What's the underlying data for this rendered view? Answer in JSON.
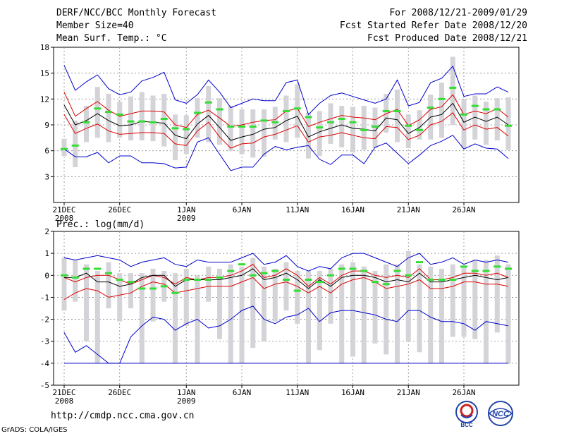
{
  "header": {
    "title": "DERF/NCC/BCC Monthly Forecast",
    "member_size": "Member Size=40",
    "variable": "Mean Surf. Temp.: °C",
    "forecast_range": "For 2008/12/21-2009/01/29",
    "start_date": "Fcst Started Refer Date 2008/12/20",
    "produced_date": "Fcst Produced Date 2008/12/21"
  },
  "footer": {
    "url": "http://cmdp.ncc.cma.gov.cn",
    "credit": "GrADS: COLA/IGES",
    "logo_left": "BCC",
    "logo_right": "NCC"
  },
  "colors": {
    "max": "#0000cc",
    "min": "#0000cc",
    "upper": "#dd0000",
    "lower": "#dd0000",
    "mean": "#000000",
    "box": "#d4d4d8",
    "marker": "#33dd33",
    "grid": "#888888"
  },
  "chart_data": [
    {
      "type": "line",
      "title": "Mean Surf. Temp.: °C",
      "ylabel": "°C",
      "ylim": [
        0,
        18
      ],
      "yticks": [
        3,
        6,
        9,
        12,
        15,
        18
      ],
      "xticks": [
        {
          "day": 0,
          "label": "21DEC",
          "sub": "2008"
        },
        {
          "day": 5,
          "label": "26DEC",
          "sub": ""
        },
        {
          "day": 11,
          "label": "1JAN",
          "sub": "2009"
        },
        {
          "day": 16,
          "label": "6JAN",
          "sub": ""
        },
        {
          "day": 21,
          "label": "11JAN",
          "sub": ""
        },
        {
          "day": 26,
          "label": "16JAN",
          "sub": ""
        },
        {
          "day": 31,
          "label": "21JAN",
          "sub": ""
        },
        {
          "day": 36,
          "label": "26JAN",
          "sub": ""
        }
      ],
      "days": 40,
      "series": [
        {
          "name": "max",
          "values": [
            15.9,
            13.0,
            14.0,
            14.8,
            13.2,
            12.5,
            12.8,
            14.1,
            14.5,
            15.1,
            11.9,
            11.5,
            12.5,
            14.2,
            12.8,
            11.0,
            11.5,
            12.0,
            11.8,
            11.8,
            13.9,
            14.2,
            10.2,
            11.5,
            12.4,
            12.7,
            12.3,
            11.9,
            11.5,
            12.0,
            14.2,
            11.2,
            11.6,
            13.9,
            14.4,
            15.8,
            12.3,
            12.6,
            12.6,
            13.4,
            12.8
          ]
        },
        {
          "name": "upper",
          "values": [
            12.8,
            10.0,
            10.9,
            11.7,
            10.7,
            10.0,
            10.3,
            10.6,
            10.6,
            10.5,
            9.0,
            8.7,
            10.2,
            10.7,
            9.8,
            8.8,
            9.0,
            9.3,
            9.5,
            9.6,
            10.6,
            10.9,
            8.8,
            9.3,
            9.7,
            10.1,
            9.9,
            9.8,
            9.6,
            10.3,
            10.8,
            8.9,
            9.6,
            10.8,
            11.1,
            12.5,
            10.2,
            10.6,
            10.3,
            10.9,
            9.9
          ]
        },
        {
          "name": "mean",
          "values": [
            11.3,
            9.0,
            9.5,
            10.3,
            9.5,
            8.9,
            9.0,
            9.4,
            9.3,
            9.2,
            7.8,
            7.4,
            9.1,
            10.1,
            8.7,
            7.2,
            7.6,
            7.9,
            8.5,
            8.7,
            9.5,
            10.0,
            7.6,
            8.2,
            8.6,
            9.0,
            8.6,
            8.5,
            8.3,
            9.8,
            9.6,
            8.0,
            8.7,
            9.9,
            10.2,
            11.5,
            9.3,
            9.9,
            9.4,
            9.9,
            9.0
          ]
        },
        {
          "name": "lower",
          "values": [
            10.2,
            8.0,
            8.6,
            9.1,
            8.3,
            7.9,
            8.0,
            8.1,
            8.1,
            8.0,
            6.8,
            6.6,
            8.3,
            9.3,
            7.6,
            6.3,
            6.8,
            6.9,
            7.6,
            7.9,
            8.4,
            8.9,
            7.0,
            7.6,
            7.8,
            8.1,
            7.8,
            7.5,
            7.4,
            8.8,
            8.7,
            7.3,
            7.8,
            9.0,
            9.4,
            10.4,
            8.4,
            9.0,
            8.5,
            8.7,
            7.7
          ]
        },
        {
          "name": "min",
          "values": [
            6.2,
            5.3,
            5.3,
            5.8,
            4.6,
            5.4,
            5.4,
            4.6,
            4.6,
            4.5,
            4.0,
            4.1,
            7.0,
            7.5,
            5.6,
            3.7,
            4.1,
            4.1,
            5.6,
            6.5,
            6.1,
            6.4,
            6.6,
            5.0,
            4.4,
            5.5,
            5.5,
            4.5,
            6.4,
            6.9,
            5.7,
            4.5,
            5.5,
            6.6,
            7.1,
            7.8,
            6.2,
            6.8,
            6.3,
            6.2,
            5.1
          ]
        }
      ],
      "box_low": [
        5.4,
        4.1,
        7.0,
        7.5,
        7.0,
        7.5,
        7.2,
        7.2,
        7.1,
        6.5,
        4.9,
        5.6,
        7.5,
        7.0,
        6.7,
        6.0,
        5.6,
        5.2,
        5.3,
        7.3,
        7.0,
        7.5,
        5.1,
        5.4,
        6.8,
        6.4,
        5.8,
        6.1,
        6.3,
        8.1,
        7.0,
        6.3,
        7.3,
        7.3,
        7.5,
        9.0,
        6.3,
        7.3,
        6.7,
        7.2,
        6.1
      ],
      "box_high": [
        7.4,
        9.5,
        11.2,
        13.4,
        12.6,
        11.7,
        12.3,
        12.8,
        12.4,
        12.6,
        10.2,
        10.1,
        12.1,
        13.5,
        12.1,
        11.2,
        10.8,
        10.8,
        10.8,
        11.1,
        12.4,
        13.7,
        10.4,
        10.6,
        11.5,
        11.2,
        11.1,
        11.2,
        11.0,
        12.6,
        13.1,
        10.2,
        10.7,
        12.5,
        13.9,
        16.9,
        12.0,
        12.4,
        11.7,
        12.1,
        12.2
      ],
      "markers": [
        6.2,
        6.6,
        9.3,
        10.9,
        10.5,
        10.2,
        9.4,
        9.4,
        9.3,
        9.7,
        8.6,
        8.5,
        10.4,
        11.6,
        10.8,
        8.8,
        8.8,
        8.8,
        9.5,
        9.3,
        10.6,
        10.9,
        9.9,
        8.7,
        9.3,
        9.7,
        9.3,
        8.4,
        8.8,
        10.6,
        10.6,
        8.9,
        8.4,
        11.0,
        12.0,
        13.3,
        10.2,
        11.2,
        10.8,
        10.8,
        8.9
      ]
    },
    {
      "type": "line",
      "title": "Prec.: log(mm/d)",
      "ylabel": "log(mm/d)",
      "ylim": [
        -5,
        2
      ],
      "yticks": [
        -5,
        -4,
        -3,
        -2,
        -1,
        0,
        1,
        2
      ],
      "xticks": [
        {
          "day": 0,
          "label": "21DEC",
          "sub": "2008"
        },
        {
          "day": 5,
          "label": "26DEC",
          "sub": ""
        },
        {
          "day": 11,
          "label": "1JAN",
          "sub": "2009"
        },
        {
          "day": 16,
          "label": "6JAN",
          "sub": ""
        },
        {
          "day": 21,
          "label": "11JAN",
          "sub": ""
        },
        {
          "day": 26,
          "label": "16JAN",
          "sub": ""
        },
        {
          "day": 31,
          "label": "21JAN",
          "sub": ""
        },
        {
          "day": 36,
          "label": "26JAN",
          "sub": ""
        }
      ],
      "days": 40,
      "series": [
        {
          "name": "max",
          "values": [
            0.8,
            0.7,
            0.8,
            0.9,
            0.8,
            0.7,
            0.4,
            0.6,
            0.7,
            0.8,
            0.5,
            0.4,
            0.7,
            0.6,
            0.6,
            0.6,
            0.8,
            1.0,
            0.5,
            0.6,
            0.9,
            0.4,
            0.2,
            0.4,
            0.3,
            0.8,
            1.0,
            1.0,
            0.8,
            0.6,
            0.4,
            0.8,
            1.0,
            0.5,
            0.6,
            0.8,
            0.5,
            0.7,
            0.6,
            0.7,
            0.6
          ]
        },
        {
          "name": "upper",
          "values": [
            -0.1,
            -0.3,
            -0.1,
            0.0,
            0.0,
            -0.2,
            -0.4,
            -0.2,
            0.0,
            -0.1,
            -0.4,
            -0.1,
            -0.2,
            -0.1,
            -0.1,
            0.0,
            0.2,
            0.5,
            -0.1,
            0.0,
            0.3,
            0.0,
            -0.5,
            -0.1,
            -0.4,
            0.0,
            0.2,
            0.2,
            0.0,
            -0.1,
            0.0,
            -0.1,
            0.3,
            -0.2,
            -0.2,
            -0.1,
            0.1,
            0.1,
            0.0,
            0.1,
            -0.1
          ]
        },
        {
          "name": "mean",
          "values": [
            -0.1,
            -0.1,
            0.1,
            -0.3,
            -0.3,
            -0.5,
            -0.4,
            -0.1,
            0.0,
            0.0,
            -0.5,
            -0.2,
            -0.2,
            -0.2,
            -0.2,
            -0.1,
            0.0,
            0.3,
            -0.2,
            -0.1,
            0.1,
            -0.2,
            -0.6,
            -0.2,
            -0.5,
            -0.1,
            0.0,
            0.0,
            -0.1,
            -0.3,
            -0.2,
            -0.3,
            0.1,
            -0.3,
            -0.3,
            -0.2,
            -0.1,
            0.0,
            -0.1,
            -0.2,
            -0.1
          ]
        },
        {
          "name": "lower",
          "values": [
            -1.1,
            -0.8,
            -0.6,
            -0.7,
            -1.0,
            -0.9,
            -0.8,
            -0.5,
            -0.3,
            -0.4,
            -0.8,
            -0.7,
            -0.6,
            -0.5,
            -0.5,
            -0.5,
            -0.3,
            -0.1,
            -0.6,
            -0.4,
            -0.3,
            -0.5,
            -0.8,
            -0.5,
            -0.8,
            -0.4,
            -0.2,
            -0.1,
            -0.3,
            -0.6,
            -0.5,
            -0.4,
            -0.2,
            -0.6,
            -0.6,
            -0.5,
            -0.3,
            -0.3,
            -0.4,
            -0.4,
            -0.5
          ]
        },
        {
          "name": "min",
          "values": [
            -2.6,
            -3.5,
            -3.2,
            -3.6,
            -4.0,
            -4.0,
            -2.8,
            -2.3,
            -1.9,
            -2.0,
            -2.5,
            -2.2,
            -2.0,
            -2.4,
            -2.3,
            -2.0,
            -1.6,
            -1.4,
            -2.0,
            -2.2,
            -1.9,
            -1.8,
            -1.5,
            -2.1,
            -1.7,
            -1.6,
            -1.6,
            -1.7,
            -1.8,
            -2.0,
            -2.1,
            -1.6,
            -1.6,
            -1.9,
            -2.1,
            -2.1,
            -2.2,
            -2.5,
            -2.1,
            -2.2,
            -2.3
          ]
        },
        {
          "name": "floor",
          "values": [
            -4,
            -4,
            -4,
            -4,
            -4,
            -4,
            -4,
            -4,
            -4,
            -4,
            -4,
            -4,
            -4,
            -4,
            -4,
            -4,
            -4,
            -4,
            -4,
            -4,
            -4,
            -4,
            -4,
            -4,
            -4,
            -4,
            -4,
            -4,
            -4,
            -4,
            -4,
            -4,
            -4,
            -4,
            -4,
            -4,
            -4,
            -4,
            -4,
            -4,
            -4
          ]
        }
      ],
      "box_low": [
        -1.6,
        -1.2,
        -3.0,
        -4.0,
        -1.5,
        -2.1,
        -1.5,
        -4.0,
        -2.1,
        -1.2,
        -4.0,
        -2.3,
        -4.0,
        -1.2,
        -2.9,
        -4.0,
        -4.0,
        -3.3,
        -3.0,
        -2.1,
        -1.6,
        -2.2,
        -4.0,
        -3.4,
        -2.2,
        -4.0,
        -3.7,
        -4.0,
        -3.1,
        -3.6,
        -4.0,
        -3.0,
        -3.5,
        -4.0,
        -4.0,
        -2.8,
        -2.8,
        -2.9,
        -4.0,
        -2.6,
        -4.0
      ],
      "box_high": [
        0.8,
        0.7,
        0.5,
        0.2,
        0.6,
        0.1,
        0.1,
        0.1,
        0.3,
        0.2,
        0.1,
        0.3,
        0.0,
        0.4,
        0.3,
        0.5,
        0.4,
        0.8,
        0.4,
        0.3,
        0.6,
        0.2,
        0.2,
        0.2,
        0.3,
        0.5,
        0.6,
        0.4,
        0.2,
        0.5,
        0.5,
        1.1,
        0.5,
        0.4,
        0.3,
        0.5,
        0.4,
        0.7,
        0.7,
        0.9,
        0.5
      ],
      "markers": [
        0.0,
        -0.1,
        0.3,
        0.3,
        0.1,
        -0.2,
        -0.3,
        -0.6,
        -0.6,
        -0.5,
        -0.8,
        -0.2,
        -0.2,
        -0.2,
        -0.1,
        0.2,
        0.5,
        0.0,
        0.1,
        0.2,
        -0.2,
        -0.7,
        -0.2,
        -0.3,
        0.0,
        0.3,
        0.3,
        0.2,
        -0.3,
        -0.4,
        0.2,
        0.0,
        0.6,
        -0.2,
        -0.2,
        -0.2,
        0.4,
        0.2,
        0.2,
        0.4,
        0.3
      ]
    }
  ]
}
